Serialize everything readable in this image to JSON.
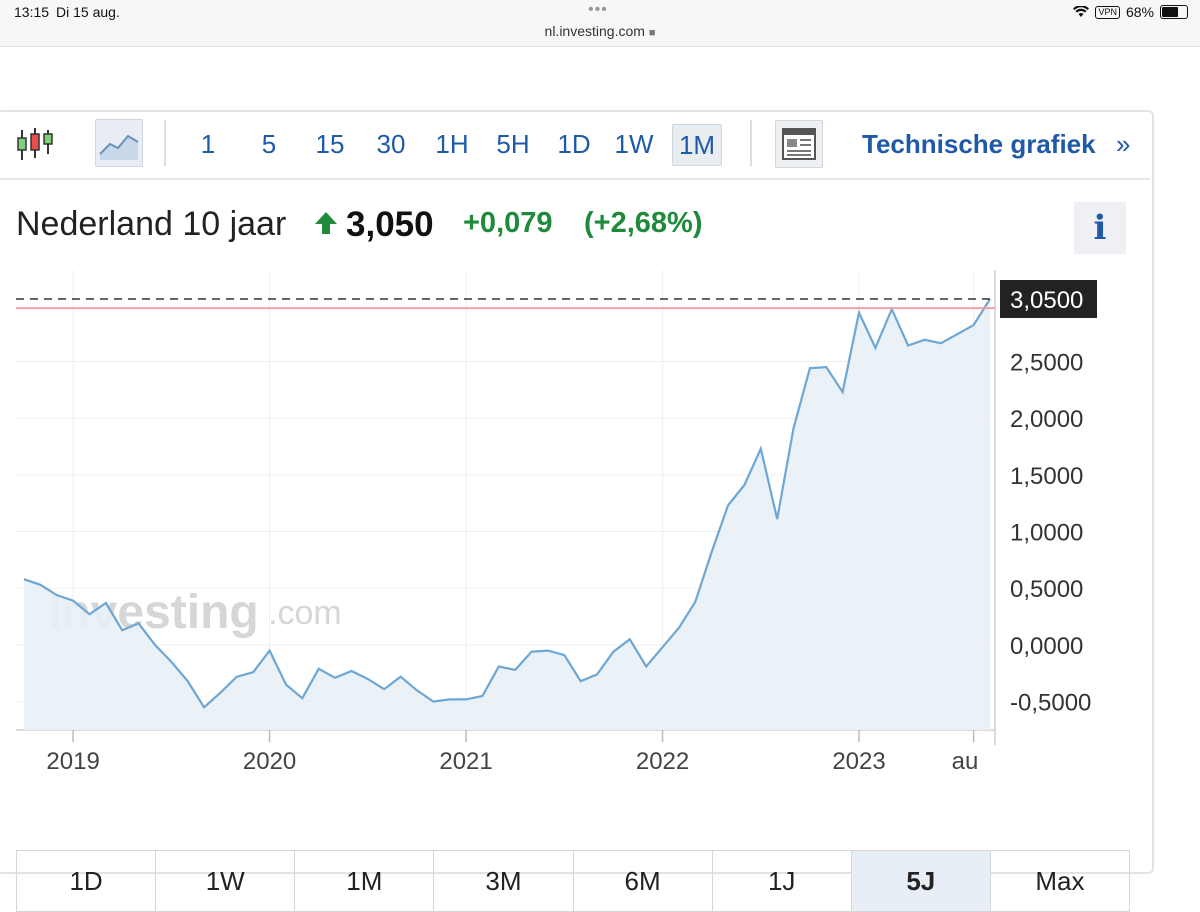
{
  "statusbar": {
    "time": "13:15",
    "date": "Di 15 aug.",
    "url": "nl.investing.com",
    "vpn": "VPN",
    "battery": "68%"
  },
  "toolbar": {
    "icons": [
      "candlestick-icon",
      "area-chart-icon",
      "news-icon"
    ],
    "timeframes": [
      "1",
      "5",
      "15",
      "30",
      "1H",
      "5H",
      "1D",
      "1W",
      "1M"
    ],
    "active_timeframe": "1M",
    "technical_label": "Technische grafiek",
    "technical_arrow": "»"
  },
  "header": {
    "title": "Nederland 10 jaar",
    "price": "3,050",
    "change": "+0,079",
    "change_pct": "(+2,68%)",
    "info_label": "i",
    "up_color": "#1f8a3b"
  },
  "ranges": {
    "items": [
      "1D",
      "1W",
      "1M",
      "3M",
      "6M",
      "1J",
      "5J",
      "Max"
    ],
    "active": "5J"
  },
  "chart_data": {
    "type": "area",
    "title": "",
    "xlabel": "",
    "ylabel": "",
    "x": [
      "2018-10",
      "2018-11",
      "2018-12",
      "2019-01",
      "2019-02",
      "2019-03",
      "2019-04",
      "2019-05",
      "2019-06",
      "2019-07",
      "2019-08",
      "2019-09",
      "2019-10",
      "2019-11",
      "2019-12",
      "2020-01",
      "2020-02",
      "2020-03",
      "2020-04",
      "2020-05",
      "2020-06",
      "2020-07",
      "2020-08",
      "2020-09",
      "2020-10",
      "2020-11",
      "2020-12",
      "2021-01",
      "2021-02",
      "2021-03",
      "2021-04",
      "2021-05",
      "2021-06",
      "2021-07",
      "2021-08",
      "2021-09",
      "2021-10",
      "2021-11",
      "2021-12",
      "2022-01",
      "2022-02",
      "2022-03",
      "2022-04",
      "2022-05",
      "2022-06",
      "2022-07",
      "2022-08",
      "2022-09",
      "2022-10",
      "2022-11",
      "2022-12",
      "2023-01",
      "2023-02",
      "2023-03",
      "2023-04",
      "2023-05",
      "2023-06",
      "2023-07",
      "2023-08"
    ],
    "values": [
      0.58,
      0.53,
      0.44,
      0.39,
      0.27,
      0.37,
      0.13,
      0.19,
      0.0,
      -0.15,
      -0.32,
      -0.55,
      -0.42,
      -0.28,
      -0.24,
      -0.05,
      -0.35,
      -0.47,
      -0.21,
      -0.29,
      -0.23,
      -0.3,
      -0.39,
      -0.28,
      -0.4,
      -0.5,
      -0.48,
      -0.48,
      -0.45,
      -0.19,
      -0.22,
      -0.06,
      -0.05,
      -0.09,
      -0.32,
      -0.26,
      -0.06,
      0.05,
      -0.19,
      -0.02,
      0.15,
      0.38,
      0.82,
      1.23,
      1.41,
      1.73,
      1.11,
      1.91,
      2.44,
      2.45,
      2.23,
      2.93,
      2.62,
      2.96,
      2.64,
      2.69,
      2.66,
      2.74,
      2.82
    ],
    "last_value": 3.05,
    "last_value_label": "3,0500",
    "reference_value": 2.97,
    "x_tick_labels": [
      "2019",
      "2020",
      "2021",
      "2022",
      "2023",
      "au"
    ],
    "x_tick_positions": [
      "2019-01",
      "2020-01",
      "2021-01",
      "2022-01",
      "2023-01",
      "2023-08"
    ],
    "y_ticks": [
      2.5,
      2.0,
      1.5,
      1.0,
      0.5,
      0.0,
      -0.5
    ],
    "y_tick_labels": [
      "2,5000",
      "2,0000",
      "1,5000",
      "1,0000",
      "0,5000",
      "0,0000",
      "-0,5000"
    ],
    "ylim": [
      -0.75,
      3.2
    ],
    "grid": true,
    "watermark": "Investing",
    "watermark_suffix": ".com",
    "line_color": "#6ea6d4",
    "fill_color": "#e8eff6",
    "reference_color": "#f0a0a8",
    "last_label_bg": "#222222"
  }
}
